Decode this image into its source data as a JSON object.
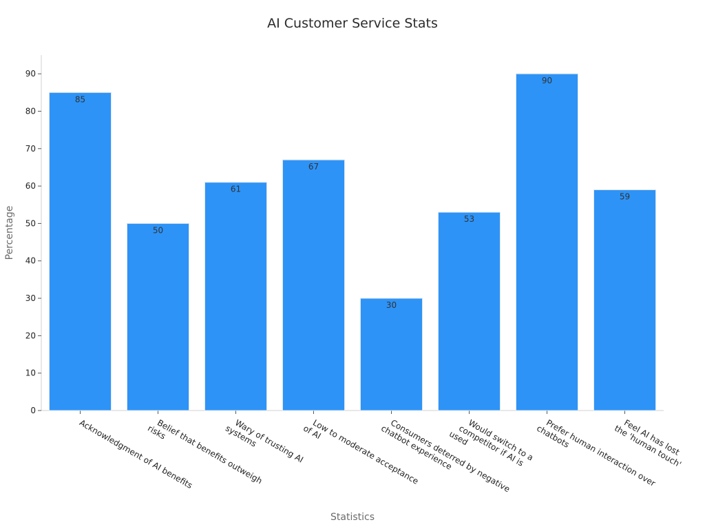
{
  "chart_data": {
    "type": "bar",
    "title": "AI Customer Service Stats",
    "xlabel": "Statistics",
    "ylabel": "Percentage",
    "ylim": [
      0,
      95
    ],
    "yticks": [
      0,
      10,
      20,
      30,
      40,
      50,
      60,
      70,
      80,
      90
    ],
    "categories": [
      [
        "Acknowledgment of AI benefits"
      ],
      [
        "Belief that benefits outweigh",
        "risks"
      ],
      [
        "Wary of trusting AI",
        "systems"
      ],
      [
        "Low to moderate acceptance",
        "of AI"
      ],
      [
        "Consumers deterred by negative",
        "chatbot experience"
      ],
      [
        "Would switch to a",
        "competitor if AI is",
        "used"
      ],
      [
        "Prefer human interaction over",
        "chatbots"
      ],
      [
        "Feel AI has lost",
        "the 'human touch'"
      ]
    ],
    "values": [
      85,
      50,
      61,
      67,
      30,
      53,
      90,
      59
    ],
    "data_labels": [
      "85",
      "50",
      "61",
      "67",
      "30",
      "53",
      "90",
      "59"
    ],
    "bar_color": "#2d93f7",
    "grid": false
  }
}
